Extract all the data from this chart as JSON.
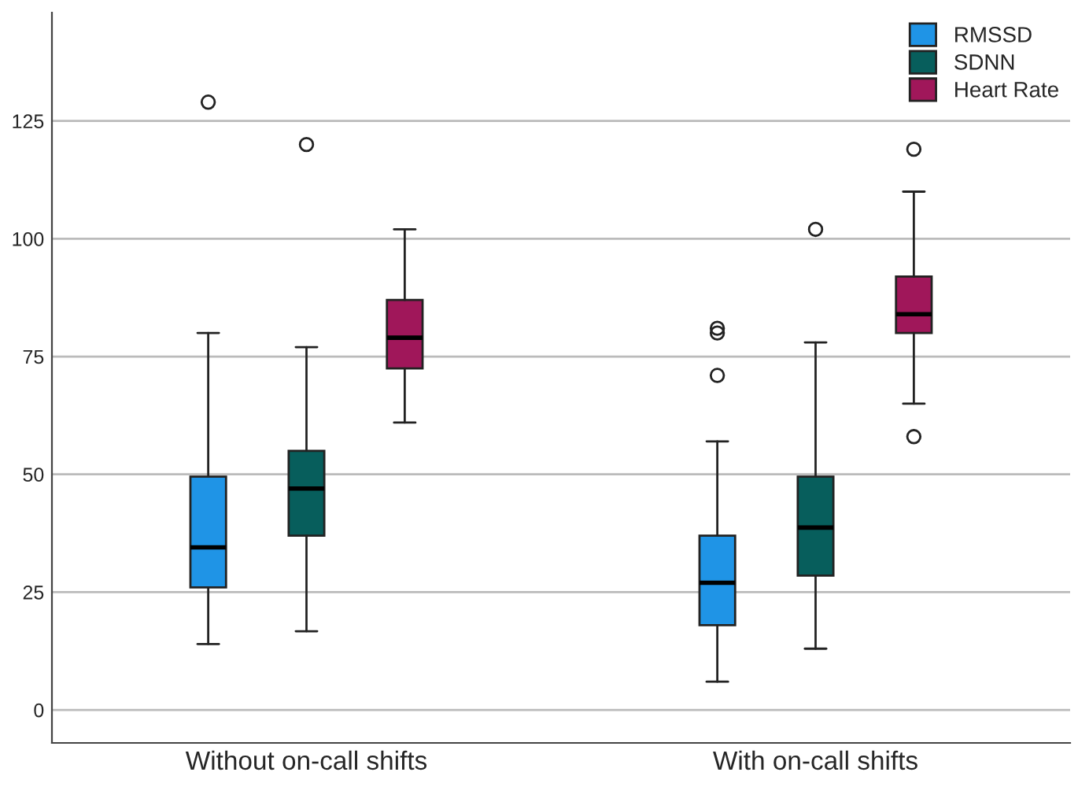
{
  "chart_data": {
    "type": "box",
    "categories": [
      "Without on-call shifts",
      "With on-call shifts"
    ],
    "series": [
      {
        "name": "RMSSD",
        "color": "#1f94e6",
        "boxes": [
          {
            "low": 14,
            "q1": 26,
            "median": 34.5,
            "q3": 49.5,
            "high": 80,
            "outliers": [
              129
            ]
          },
          {
            "low": 6,
            "q1": 18,
            "median": 27,
            "q3": 37,
            "high": 57,
            "outliers": [
              71,
              80,
              81
            ]
          }
        ]
      },
      {
        "name": "SDNN",
        "color": "#075e5c",
        "boxes": [
          {
            "low": 16.7,
            "q1": 37,
            "median": 47,
            "q3": 55,
            "high": 77,
            "outliers": [
              120
            ]
          },
          {
            "low": 13,
            "q1": 28.5,
            "median": 38.7,
            "q3": 49.5,
            "high": 78,
            "outliers": [
              102
            ]
          }
        ]
      },
      {
        "name": "Heart Rate",
        "color": "#a0175a",
        "boxes": [
          {
            "low": 61,
            "q1": 72.5,
            "median": 79,
            "q3": 87,
            "high": 102
          },
          {
            "low": 65,
            "q1": 80,
            "median": 84,
            "q3": 92,
            "high": 110,
            "outliers": [
              58,
              119
            ]
          }
        ]
      }
    ],
    "ylim": [
      -7,
      148
    ],
    "yticks": [
      0,
      25,
      50,
      75,
      100,
      125
    ],
    "grid": "y",
    "legend": "top right"
  }
}
